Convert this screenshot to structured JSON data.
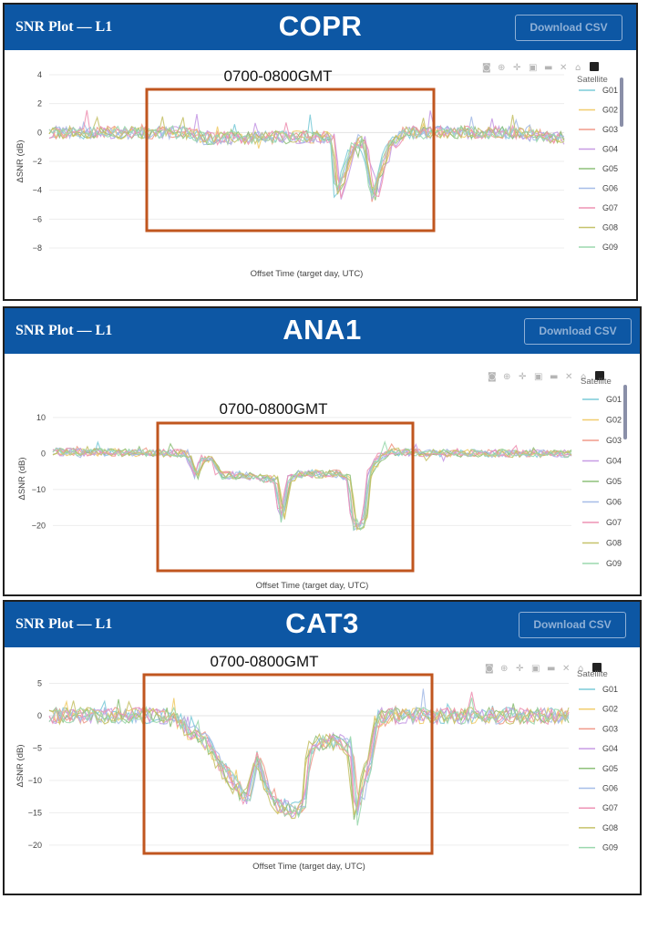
{
  "colors": {
    "header_bg": "#0d57a4",
    "window_box": "#c0561f",
    "series": [
      "#7ccbd8",
      "#f1cd6d",
      "#f09a8a",
      "#c79be4",
      "#8ec07a",
      "#a6bde8",
      "#ee93b4",
      "#c6c26a",
      "#9bd8ae"
    ]
  },
  "toolbar_icons": [
    "camera-icon",
    "zoom-icon",
    "pan-icon",
    "zoom-in-icon",
    "zoom-out-icon",
    "autoscale-icon",
    "home-icon",
    "plotly-logo-icon"
  ],
  "panels": [
    {
      "title": "SNR Plot — L1",
      "site": "COPR",
      "download_label": "Download CSV",
      "window_label": "0700-0800GMT",
      "xlabel": "Offset Time (target day, UTC)",
      "ylabel": "ΔSNR (dB)",
      "legend_title": "Satellite"
    },
    {
      "title": "SNR Plot — L1",
      "site": "ANA1",
      "download_label": "Download CSV",
      "window_label": "0700-0800GMT",
      "xlabel": "Offset Time (target day, UTC)",
      "ylabel": "ΔSNR (dB)",
      "legend_title": "Satellite"
    },
    {
      "title": "SNR Plot — L1",
      "site": "CAT3",
      "download_label": "Download CSV",
      "window_label": "0700-0800GMT",
      "xlabel": "Offset Time (target day, UTC)",
      "ylabel": "ΔSNR (dB)",
      "legend_title": "Satellite"
    }
  ],
  "chart_data": [
    {
      "type": "line",
      "site": "COPR",
      "xlabel": "Offset Time (target day, UTC)",
      "ylabel": "ΔSNR (dB)",
      "ylim": [
        -8,
        4
      ],
      "yticks": [
        4,
        2,
        0,
        -2,
        -4,
        -6,
        -8
      ],
      "ytick_labels": [
        "4",
        "2",
        "0",
        "−2",
        "−4",
        "−6",
        "−8"
      ],
      "grid": true,
      "legend_title": "Satellite",
      "legend_position": "right",
      "series_names": [
        "G01",
        "G02",
        "G03",
        "G04",
        "G05",
        "G06",
        "G07",
        "G08",
        "G09"
      ],
      "annotation": "0700-0800GMT",
      "profile": [
        [
          0,
          0.0
        ],
        [
          0.27,
          0.0
        ],
        [
          0.3,
          -0.4
        ],
        [
          0.55,
          -0.3
        ],
        [
          0.56,
          -4.3
        ],
        [
          0.59,
          -1.0
        ],
        [
          0.61,
          -0.6
        ],
        [
          0.63,
          -4.4
        ],
        [
          0.66,
          -1.0
        ],
        [
          0.69,
          0.0
        ],
        [
          0.8,
          0.0
        ],
        [
          0.9,
          0.0
        ],
        [
          1.0,
          -0.4
        ]
      ],
      "noise": 0.45,
      "peak_extra": 1.0
    },
    {
      "type": "line",
      "site": "ANA1",
      "xlabel": "Offset Time (target day, UTC)",
      "ylabel": "ΔSNR (dB)",
      "ylim": [
        -26,
        12
      ],
      "yticks": [
        10,
        0,
        -10,
        -20
      ],
      "ytick_labels": [
        "10",
        "0",
        "−10",
        "−20"
      ],
      "grid": true,
      "legend_title": "Satellite",
      "legend_position": "right",
      "series_names": [
        "G01",
        "G02",
        "G03",
        "G04",
        "G05",
        "G06",
        "G07",
        "G08",
        "G09"
      ],
      "annotation": "0700-0800GMT",
      "profile": [
        [
          0,
          0.5
        ],
        [
          0.26,
          0.0
        ],
        [
          0.275,
          -7.0
        ],
        [
          0.29,
          -1.5
        ],
        [
          0.31,
          -2.0
        ],
        [
          0.32,
          -7.0
        ],
        [
          0.37,
          -7.0
        ],
        [
          0.4,
          -8.0
        ],
        [
          0.43,
          -8.0
        ],
        [
          0.44,
          -22.0
        ],
        [
          0.455,
          -8.5
        ],
        [
          0.47,
          -6.5
        ],
        [
          0.55,
          -6.5
        ],
        [
          0.57,
          -8.0
        ],
        [
          0.58,
          -24.0
        ],
        [
          0.6,
          -22.0
        ],
        [
          0.61,
          -6.0
        ],
        [
          0.63,
          -1.0
        ],
        [
          0.65,
          0.5
        ],
        [
          0.78,
          0.0
        ],
        [
          1.0,
          0.0
        ]
      ],
      "noise": 1.1,
      "peak_extra": 2.0
    },
    {
      "type": "line",
      "site": "CAT3",
      "xlabel": "Offset Time (target day, UTC)",
      "ylabel": "ΔSNR (dB)",
      "ylim": [
        -21,
        5.5
      ],
      "yticks": [
        5,
        0,
        -5,
        -10,
        -15,
        -20
      ],
      "ytick_labels": [
        "5",
        "0",
        "−5",
        "−10",
        "−15",
        "−20"
      ],
      "grid": true,
      "legend_title": "Satellite",
      "legend_position": "right",
      "series_names": [
        "G01",
        "G02",
        "G03",
        "G04",
        "G05",
        "G06",
        "G07",
        "G08",
        "G09"
      ],
      "annotation": "0700-0800GMT",
      "profile": [
        [
          0,
          0.0
        ],
        [
          0.24,
          0.0
        ],
        [
          0.27,
          -2.5
        ],
        [
          0.3,
          -4.0
        ],
        [
          0.33,
          -8.0
        ],
        [
          0.36,
          -11.0
        ],
        [
          0.38,
          -13.0
        ],
        [
          0.4,
          -6.0
        ],
        [
          0.42,
          -12.0
        ],
        [
          0.44,
          -14.0
        ],
        [
          0.47,
          -15.0
        ],
        [
          0.49,
          -14.0
        ],
        [
          0.5,
          -5.5
        ],
        [
          0.52,
          -4.0
        ],
        [
          0.56,
          -4.0
        ],
        [
          0.58,
          -5.0
        ],
        [
          0.59,
          -16.0
        ],
        [
          0.6,
          -12.0
        ],
        [
          0.62,
          -6.0
        ],
        [
          0.63,
          -1.0
        ],
        [
          0.65,
          0.0
        ],
        [
          1.0,
          0.0
        ]
      ],
      "noise": 1.3,
      "peak_extra": 2.5
    }
  ]
}
